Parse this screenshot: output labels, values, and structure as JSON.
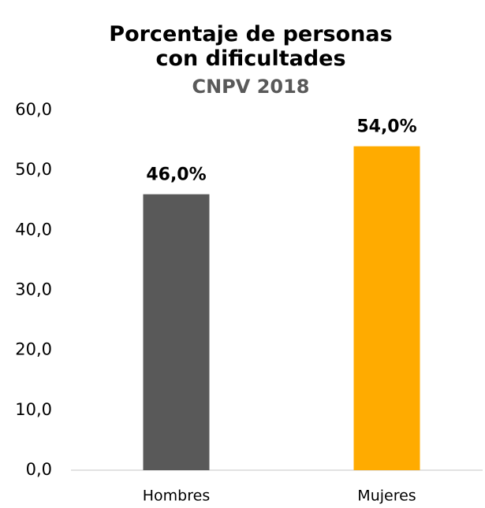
{
  "chart_data": {
    "type": "bar",
    "title": "Porcentaje de personas con dificultades",
    "subtitle": "CNPV 2018",
    "categories": [
      "Hombres",
      "Mujeres"
    ],
    "values": [
      46.0,
      54.0
    ],
    "value_labels": [
      "46,0%",
      "54,0%"
    ],
    "colors": [
      "#595959",
      "#ffab00"
    ],
    "ylim": [
      0,
      60
    ],
    "yticks": [
      {
        "value": 0,
        "label": "0,0"
      },
      {
        "value": 10,
        "label": "10,0"
      },
      {
        "value": 20,
        "label": "20,0"
      },
      {
        "value": 30,
        "label": "30,0"
      },
      {
        "value": 40,
        "label": "40,0"
      },
      {
        "value": 50,
        "label": "50,0"
      },
      {
        "value": 60,
        "label": "60,0"
      }
    ],
    "grid": false
  }
}
